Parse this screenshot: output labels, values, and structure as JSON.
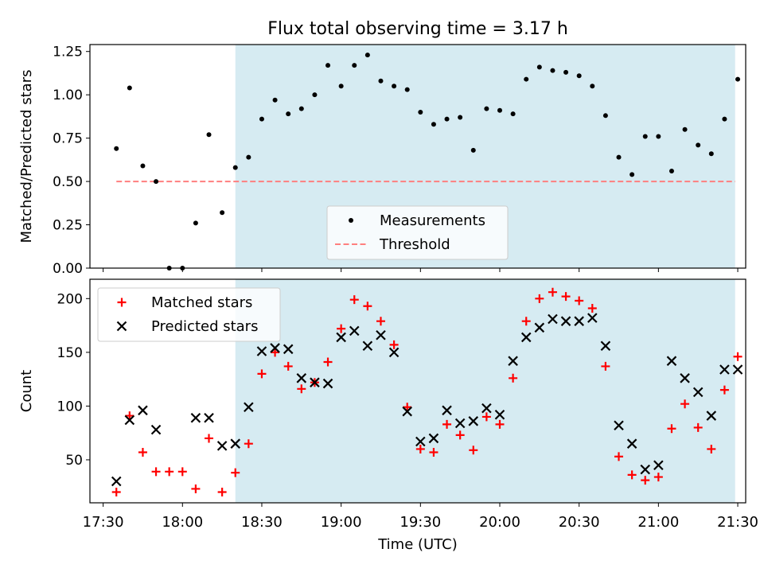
{
  "title": "Flux total observing time = 3.17 h",
  "colors": {
    "shade": "#add8e6",
    "measurement": "#000000",
    "threshold": "#ff7f7f",
    "matched": "#ff0000",
    "predicted": "#000000"
  },
  "chart_data": [
    {
      "type": "scatter",
      "ylabel": "Matched/Predicted stars",
      "ylim": [
        0,
        1.29
      ],
      "y_ticks": [
        "0.00",
        "0.25",
        "0.50",
        "0.75",
        "1.00",
        "1.25"
      ],
      "x_range": [
        "17:25",
        "21:33"
      ],
      "shaded_region": [
        "18:20",
        "21:29"
      ],
      "threshold": {
        "value": 0.5,
        "x": [
          "17:35",
          "21:29"
        ]
      },
      "legend": {
        "position": "lower-center",
        "entries": [
          "Measurements",
          "Threshold"
        ]
      },
      "series": [
        {
          "name": "Measurements",
          "x": [
            "17:35",
            "17:40",
            "17:45",
            "17:50",
            "17:55",
            "18:00",
            "18:05",
            "18:10",
            "18:15",
            "18:20",
            "18:25",
            "18:30",
            "18:35",
            "18:40",
            "18:45",
            "18:50",
            "18:55",
            "19:00",
            "19:05",
            "19:10",
            "19:15",
            "19:20",
            "19:25",
            "19:30",
            "19:35",
            "19:40",
            "19:45",
            "19:50",
            "19:55",
            "20:00",
            "20:05",
            "20:10",
            "20:15",
            "20:20",
            "20:25",
            "20:30",
            "20:35",
            "20:40",
            "20:45",
            "20:50",
            "20:55",
            "21:00",
            "21:05",
            "21:10",
            "21:15",
            "21:20",
            "21:25",
            "21:30"
          ],
          "y": [
            0.69,
            1.04,
            0.59,
            0.5,
            0.0,
            0.0,
            0.26,
            0.77,
            0.32,
            0.58,
            0.64,
            0.86,
            0.97,
            0.89,
            0.92,
            1.0,
            1.17,
            1.05,
            1.17,
            1.23,
            1.08,
            1.05,
            1.03,
            0.9,
            0.83,
            0.86,
            0.87,
            0.68,
            0.92,
            0.91,
            0.89,
            1.09,
            1.16,
            1.14,
            1.13,
            1.11,
            1.05,
            0.88,
            0.64,
            0.54,
            0.76,
            0.76,
            0.56,
            0.8,
            0.71,
            0.66,
            0.86,
            1.09
          ]
        }
      ]
    },
    {
      "type": "scatter",
      "xlabel": "Time (UTC)",
      "ylabel": "Count",
      "ylim": [
        10,
        218
      ],
      "y_ticks": [
        "50",
        "100",
        "150",
        "200"
      ],
      "x_range": [
        "17:25",
        "21:33"
      ],
      "x_ticks": [
        "17:30",
        "18:00",
        "18:30",
        "19:00",
        "19:30",
        "20:00",
        "20:30",
        "21:00",
        "21:30"
      ],
      "shaded_region": [
        "18:20",
        "21:29"
      ],
      "legend": {
        "position": "upper-left",
        "entries": [
          "Matched stars",
          "Predicted stars"
        ]
      },
      "series": [
        {
          "name": "Matched stars",
          "marker": "+",
          "x": [
            "17:35",
            "17:40",
            "17:45",
            "17:50",
            "17:55",
            "18:00",
            "18:05",
            "18:10",
            "18:15",
            "18:20",
            "18:25",
            "18:30",
            "18:35",
            "18:40",
            "18:45",
            "18:50",
            "18:55",
            "19:00",
            "19:05",
            "19:10",
            "19:15",
            "19:20",
            "19:25",
            "19:30",
            "19:35",
            "19:40",
            "19:45",
            "19:50",
            "19:55",
            "20:00",
            "20:05",
            "20:10",
            "20:15",
            "20:20",
            "20:25",
            "20:30",
            "20:35",
            "20:40",
            "20:45",
            "20:50",
            "20:55",
            "21:00",
            "21:05",
            "21:10",
            "21:15",
            "21:20",
            "21:25",
            "21:30"
          ],
          "y": [
            20,
            91,
            57,
            39,
            39,
            39,
            23,
            70,
            20,
            38,
            65,
            130,
            150,
            137,
            116,
            122,
            141,
            172,
            199,
            193,
            179,
            157,
            99,
            60,
            57,
            83,
            73,
            59,
            90,
            83,
            126,
            179,
            200,
            206,
            202,
            198,
            191,
            137,
            53,
            36,
            31,
            34,
            79,
            102,
            80,
            60,
            115,
            146
          ]
        },
        {
          "name": "Predicted stars",
          "marker": "x",
          "x": [
            "17:35",
            "17:40",
            "17:45",
            "17:50",
            "18:05",
            "18:10",
            "18:15",
            "18:20",
            "18:25",
            "18:30",
            "18:35",
            "18:40",
            "18:45",
            "18:50",
            "18:55",
            "19:00",
            "19:05",
            "19:10",
            "19:15",
            "19:20",
            "19:25",
            "19:30",
            "19:35",
            "19:40",
            "19:45",
            "19:50",
            "19:55",
            "20:00",
            "20:05",
            "20:10",
            "20:15",
            "20:20",
            "20:25",
            "20:30",
            "20:35",
            "20:40",
            "20:45",
            "20:50",
            "20:55",
            "21:00",
            "21:05",
            "21:10",
            "21:15",
            "21:20",
            "21:25",
            "21:30"
          ],
          "y": [
            30,
            87,
            96,
            78,
            89,
            89,
            63,
            65,
            99,
            151,
            154,
            153,
            126,
            122,
            121,
            164,
            170,
            156,
            166,
            150,
            95,
            67,
            70,
            96,
            84,
            86,
            98,
            92,
            142,
            164,
            173,
            181,
            179,
            179,
            182,
            156,
            82,
            65,
            41,
            45,
            142,
            126,
            113,
            91,
            134,
            134
          ]
        }
      ]
    }
  ]
}
